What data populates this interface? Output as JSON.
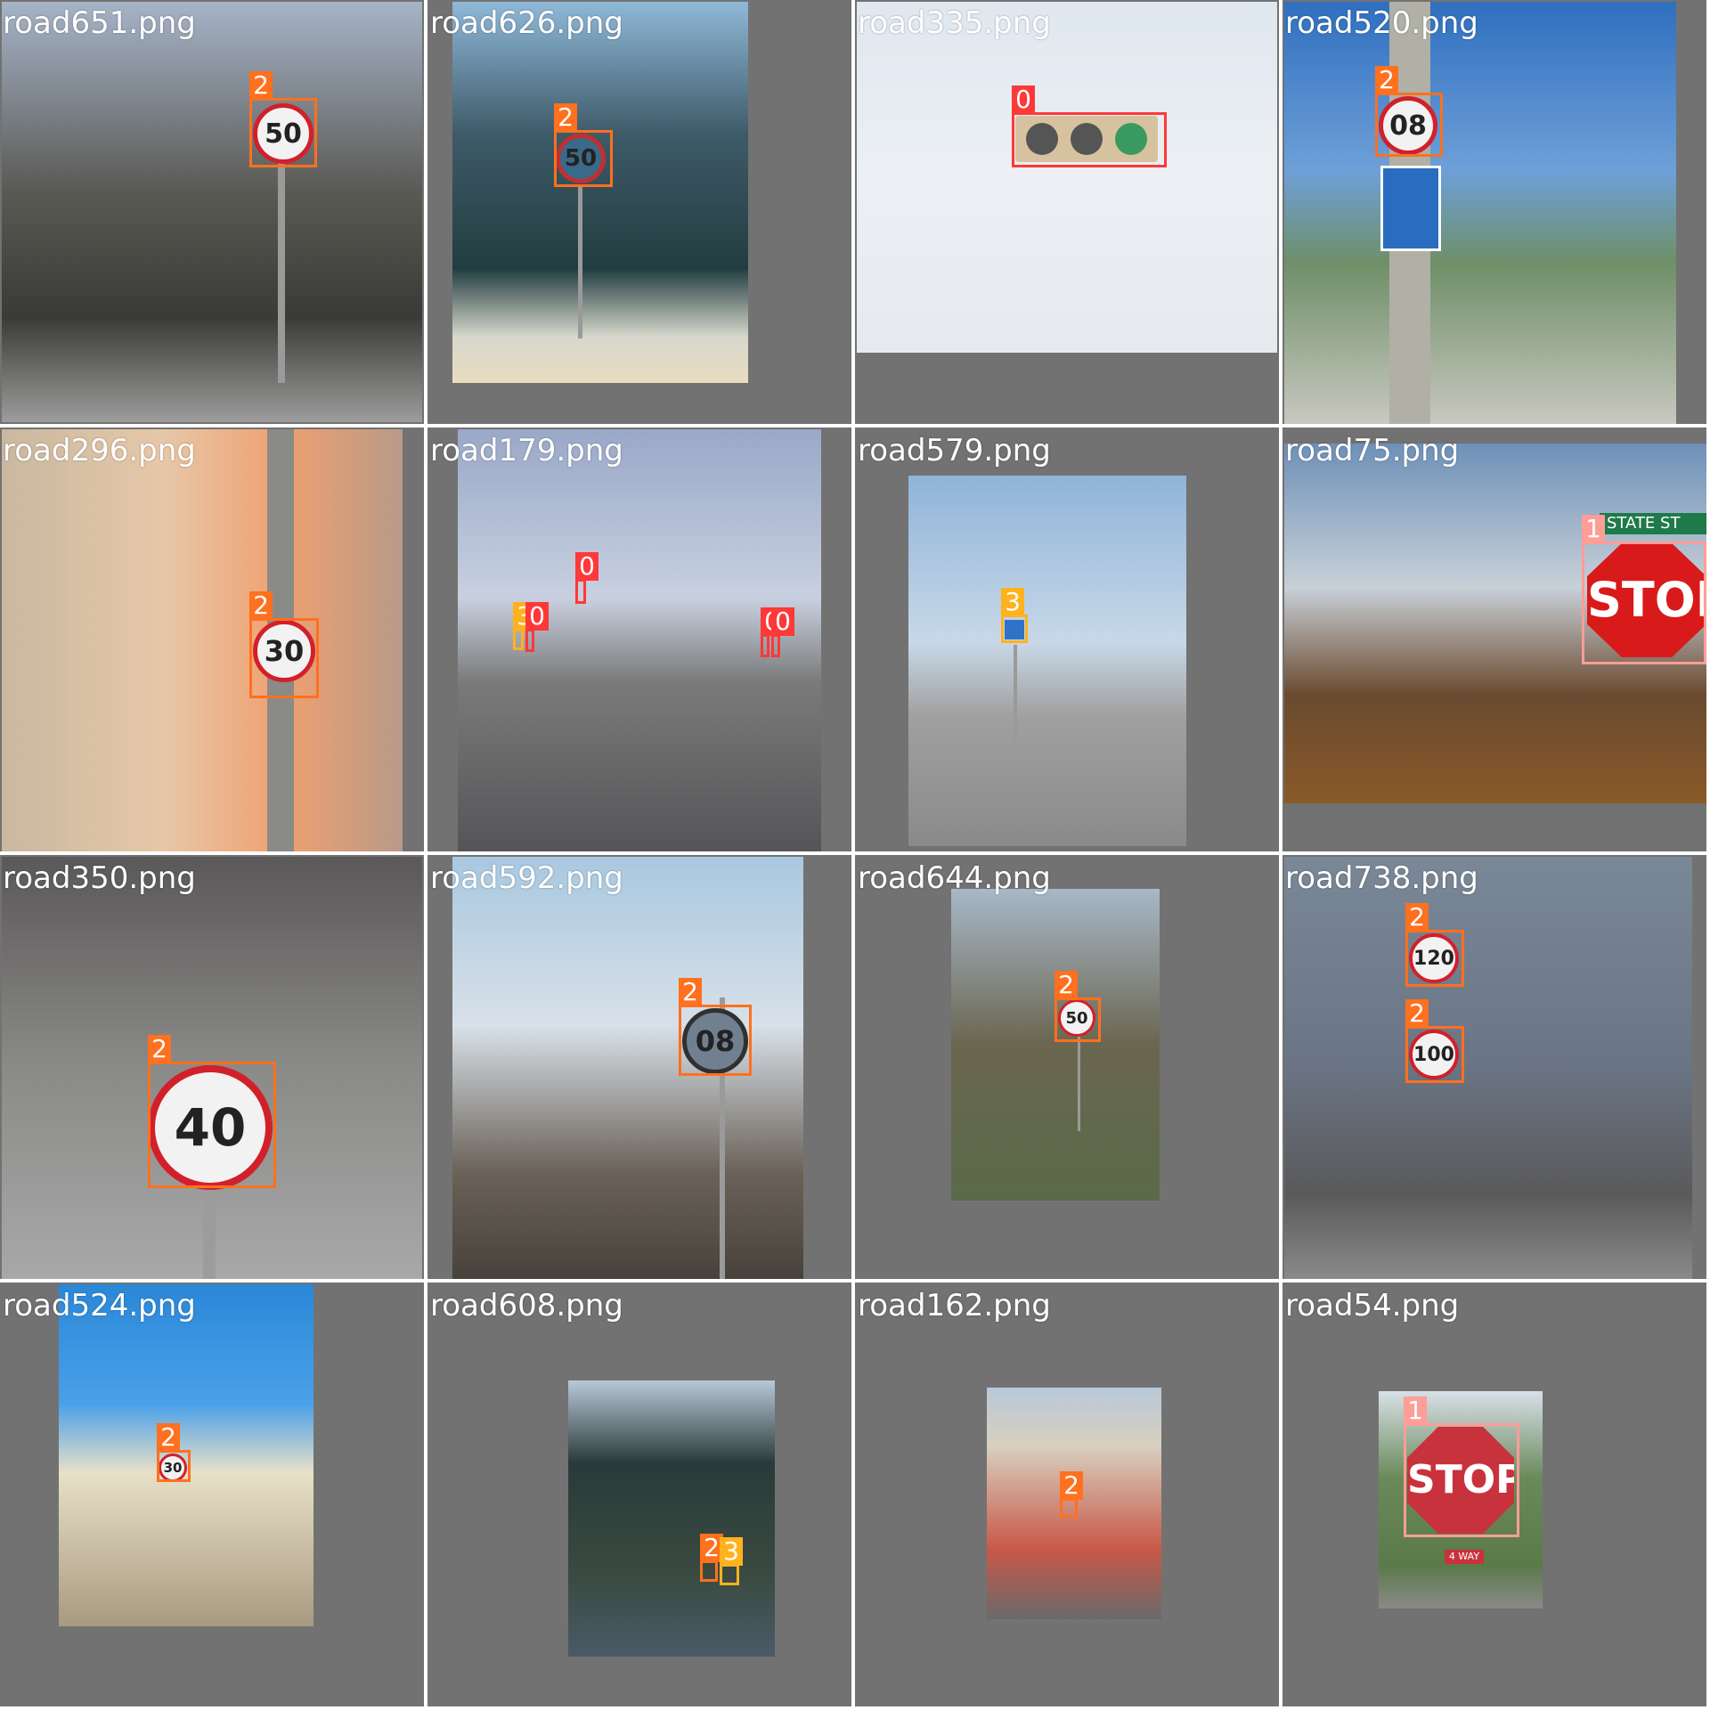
{
  "grid": {
    "cells": [
      {
        "filename": "road651.png",
        "boxes": [
          {
            "cls": "2"
          }
        ]
      },
      {
        "filename": "road626.png",
        "boxes": [
          {
            "cls": "2"
          }
        ]
      },
      {
        "filename": "road335.png",
        "boxes": [
          {
            "cls": "0"
          }
        ]
      },
      {
        "filename": "road520.png",
        "boxes": [
          {
            "cls": "2"
          }
        ]
      },
      {
        "filename": "road296.png",
        "boxes": [
          {
            "cls": "2"
          }
        ]
      },
      {
        "filename": "road179.png",
        "boxes": [
          {
            "cls": "0"
          },
          {
            "cls": "3"
          },
          {
            "cls": "0"
          },
          {
            "cls": "0"
          },
          {
            "cls": "0"
          }
        ]
      },
      {
        "filename": "road579.png",
        "boxes": [
          {
            "cls": "3"
          }
        ]
      },
      {
        "filename": "road75.png",
        "boxes": [
          {
            "cls": "1"
          }
        ]
      },
      {
        "filename": "road350.png",
        "boxes": [
          {
            "cls": "2"
          }
        ]
      },
      {
        "filename": "road592.png",
        "boxes": [
          {
            "cls": "2"
          }
        ]
      },
      {
        "filename": "road644.png",
        "boxes": [
          {
            "cls": "2"
          }
        ]
      },
      {
        "filename": "road738.png",
        "boxes": [
          {
            "cls": "2"
          },
          {
            "cls": "2"
          }
        ]
      },
      {
        "filename": "road524.png",
        "boxes": [
          {
            "cls": "2"
          }
        ]
      },
      {
        "filename": "road608.png",
        "boxes": [
          {
            "cls": "2"
          },
          {
            "cls": "3"
          }
        ]
      },
      {
        "filename": "road162.png",
        "boxes": [
          {
            "cls": "2"
          }
        ]
      },
      {
        "filename": "road54.png",
        "boxes": [
          {
            "cls": "1"
          }
        ]
      }
    ]
  },
  "sign_texts": {
    "s651": "50",
    "s626": "50",
    "s520": "08",
    "s296": "30",
    "s350": "40",
    "s592": "08",
    "s644": "50",
    "s738a": "120",
    "s738b": "100",
    "s524": "30",
    "stop75": "STOP",
    "street75": "STATE ST",
    "stop54": "STOP",
    "way54": "4 WAY"
  },
  "colors": {
    "class0": "#ff3838",
    "class1": "#ff9d97",
    "class2": "#ff701f",
    "class3": "#ffb21d",
    "background": "#727272"
  }
}
